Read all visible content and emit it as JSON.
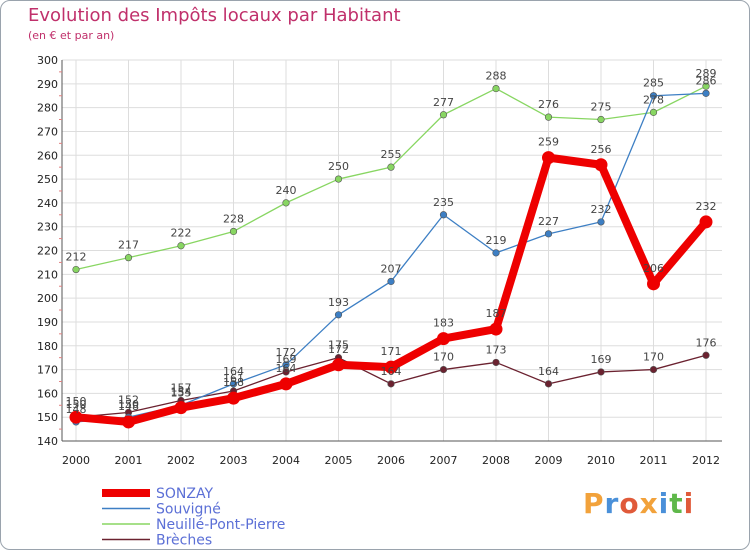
{
  "chart_data": {
    "type": "line",
    "title": "Evolution des Impôts locaux par Habitant",
    "subtitle": "(en € et par an)",
    "categories": [
      "2000",
      "2001",
      "2002",
      "2003",
      "2004",
      "2005",
      "2006",
      "2007",
      "2008",
      "2009",
      "2010",
      "2011",
      "2012"
    ],
    "ylim": [
      140,
      300
    ],
    "yticks": [
      140,
      150,
      160,
      170,
      180,
      190,
      200,
      210,
      220,
      230,
      240,
      250,
      260,
      270,
      280,
      290,
      300
    ],
    "grid": true,
    "legend_position": "bottom-left",
    "series": [
      {
        "name": "Brèches",
        "color": "#6b2230",
        "values": [
          150,
          152,
          157,
          161,
          169,
          175,
          164,
          170,
          173,
          164,
          169,
          170,
          176
        ]
      },
      {
        "name": "Neuillé-Pont-Pierre",
        "color": "#88d662",
        "values": [
          212,
          217,
          222,
          228,
          240,
          250,
          255,
          277,
          288,
          276,
          275,
          278,
          289
        ]
      },
      {
        "name": "Souvigné",
        "color": "#3d7fc4",
        "values": [
          148,
          150,
          155,
          164,
          172,
          193,
          207,
          235,
          219,
          227,
          232,
          285,
          286
        ]
      },
      {
        "name": "SONZAY",
        "color": "#ee0000",
        "values": [
          150,
          148,
          154,
          158,
          164,
          172,
          171,
          183,
          187,
          259,
          256,
          206,
          232
        ]
      }
    ]
  },
  "legend": [
    "SONZAY",
    "Souvigné",
    "Neuillé-Pont-Pierre",
    "Brèches"
  ],
  "logo": {
    "text": "Proxiti",
    "letters": [
      "P",
      "r",
      "o",
      "x",
      "i",
      "t",
      "i"
    ]
  }
}
